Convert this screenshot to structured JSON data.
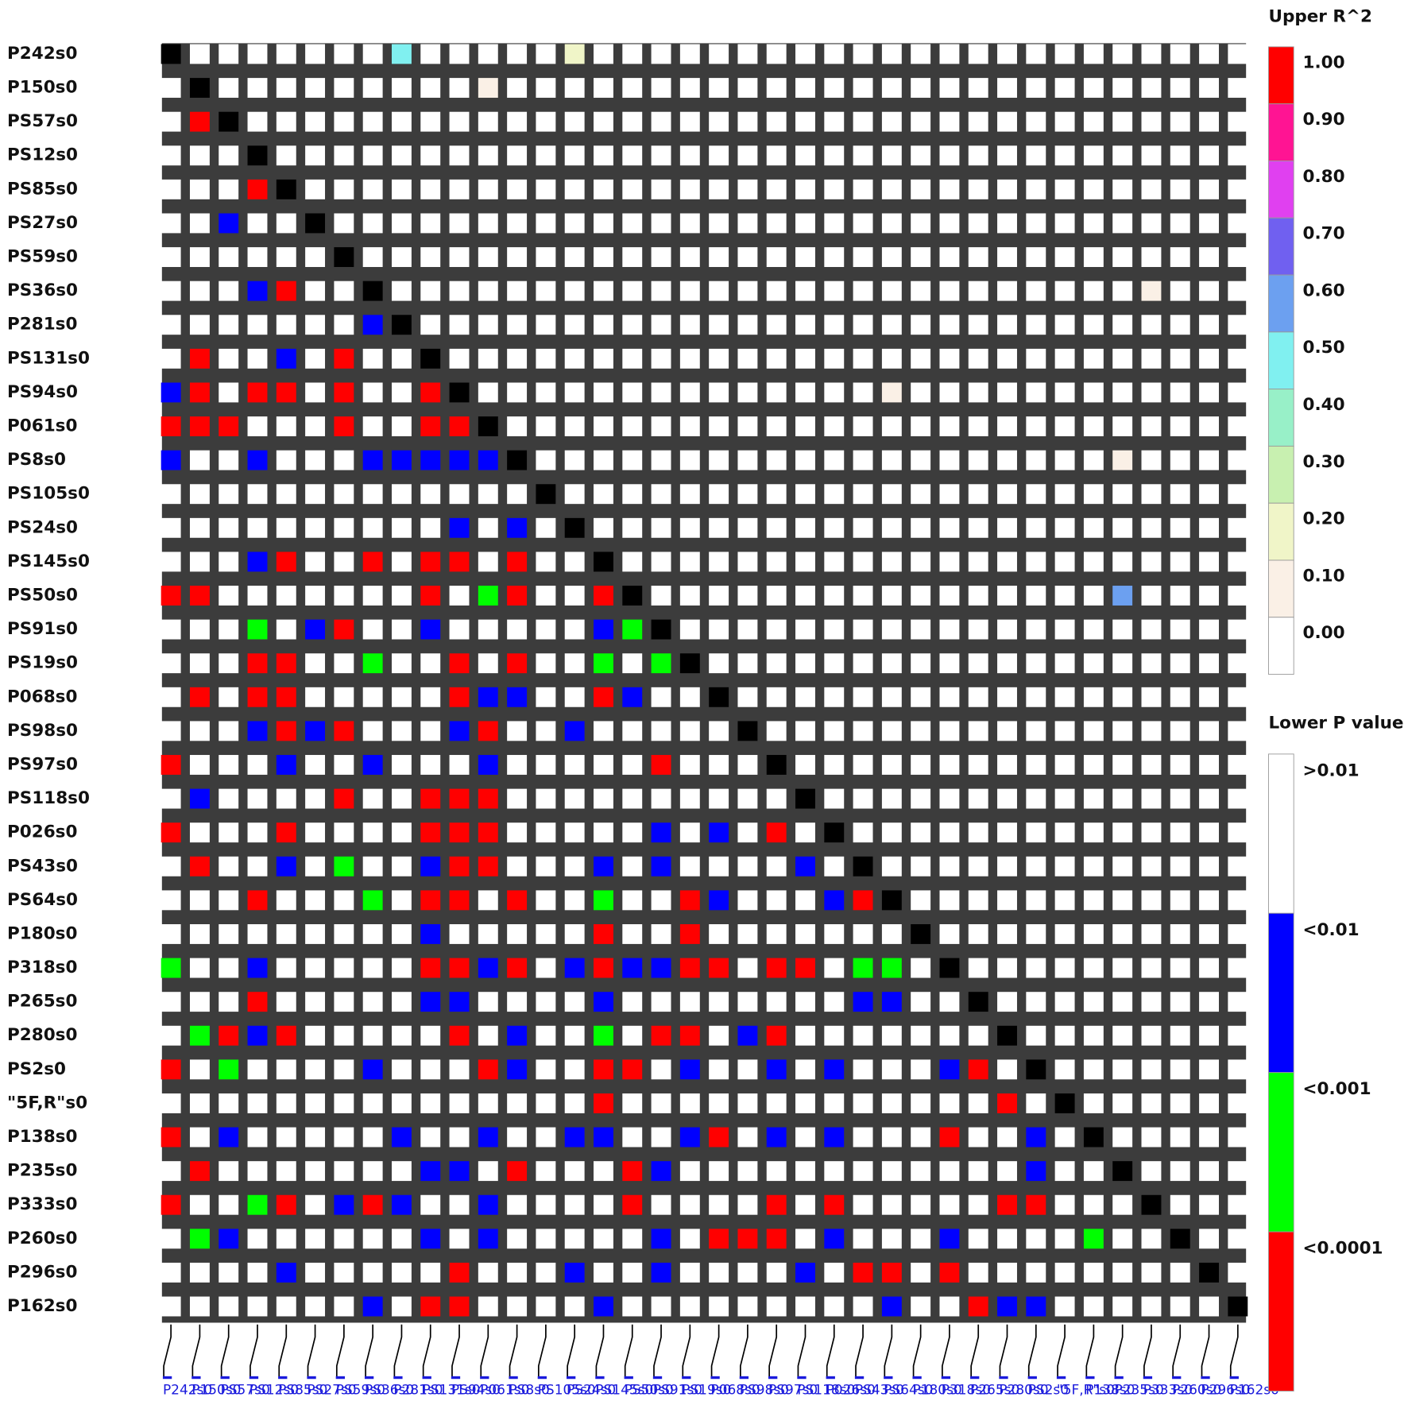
{
  "chart_data": {
    "type": "ld_heatmap",
    "categories": [
      "P242s0",
      "P150s0",
      "PS57s0",
      "PS12s0",
      "PS85s0",
      "PS27s0",
      "PS59s0",
      "PS36s0",
      "P281s0",
      "PS131s0",
      "PS94s0",
      "P061s0",
      "PS8s0",
      "PS105s0",
      "PS24s0",
      "PS145s0",
      "PS50s0",
      "PS91s0",
      "PS19s0",
      "P068s0",
      "PS98s0",
      "PS97s0",
      "PS118s0",
      "P026s0",
      "PS43s0",
      "PS64s0",
      "P180s0",
      "P318s0",
      "P265s0",
      "P280s0",
      "PS2s0",
      "\"5F,R\"s0",
      "P138s0",
      "P235s0",
      "P333s0",
      "P260s0",
      "P296s0",
      "P162s0"
    ],
    "r2_legend": {
      "title": "Upper R^2",
      "ticks": [
        {
          "value": 1,
          "label": "1.00"
        },
        {
          "value": 0.9,
          "label": "0.90"
        },
        {
          "value": 0.8,
          "label": "0.80"
        },
        {
          "value": 0.7,
          "label": "0.70"
        },
        {
          "value": 0.6,
          "label": "0.60"
        },
        {
          "value": 0.5,
          "label": "0.50"
        },
        {
          "value": 0.4,
          "label": "0.40"
        },
        {
          "value": 0.3,
          "label": "0.30"
        },
        {
          "value": 0.2,
          "label": "0.20"
        },
        {
          "value": 0.1,
          "label": "0.10"
        },
        {
          "value": 0,
          "label": "0.00"
        }
      ],
      "colors": [
        "#ff0000",
        "#ff1493",
        "#e040f0",
        "#7060f0",
        "#6ca0f0",
        "#80f0f0",
        "#98f0c8",
        "#c8f0b0",
        "#f0f5c8",
        "#faf0e6",
        "#ffffff"
      ]
    },
    "p_legend": {
      "title": "Lower P value",
      "labels": [
        ">0.01",
        "<0.01",
        "<0.001",
        "<0.0001"
      ],
      "colors": [
        "#ffffff",
        "#0000ff",
        "#00ff00",
        "#ff0000"
      ]
    },
    "diagonal_color": "#000000",
    "r2": [
      [
        0,
        0,
        0,
        0,
        0,
        0,
        0,
        0.5,
        0,
        0,
        0,
        0,
        0,
        0.2,
        0,
        0,
        0,
        0,
        0,
        0,
        0,
        0,
        0,
        0,
        0,
        0,
        0,
        0,
        0,
        0,
        0,
        0,
        0,
        0,
        0,
        0,
        0
      ],
      [
        0,
        0,
        0,
        0,
        0,
        0,
        0,
        0,
        0,
        0.1,
        0,
        0,
        0,
        0,
        0,
        0,
        0,
        0,
        0,
        0,
        0,
        0,
        0,
        0,
        0,
        0,
        0,
        0,
        0,
        0,
        0,
        0,
        0,
        0,
        0,
        0
      ],
      [
        0,
        0,
        0,
        0,
        0,
        0,
        0,
        0,
        0,
        0,
        0,
        0,
        0,
        0,
        0,
        0,
        0,
        0,
        0,
        0,
        0,
        0,
        0,
        0,
        0,
        0,
        0,
        0,
        0,
        0,
        0,
        0,
        0,
        0,
        0
      ],
      [
        0,
        0,
        0,
        0,
        0,
        0,
        0,
        0,
        0,
        0,
        0,
        0,
        0,
        0,
        0,
        0,
        0,
        0,
        0,
        0,
        0,
        0,
        0,
        0,
        0,
        0,
        0,
        0,
        0,
        0,
        0,
        0,
        0,
        0
      ],
      [
        0,
        0,
        0,
        0,
        0,
        0,
        0,
        0,
        0,
        0,
        0,
        0,
        0,
        0,
        0,
        0,
        0,
        0,
        0,
        0,
        0,
        0,
        0,
        0,
        0,
        0,
        0,
        0,
        0,
        0,
        0,
        0,
        0
      ],
      [
        0,
        0,
        0,
        0,
        0,
        0,
        0,
        0,
        0,
        0,
        0,
        0,
        0,
        0,
        0,
        0,
        0,
        0,
        0,
        0,
        0,
        0,
        0,
        0,
        0,
        0,
        0,
        0,
        0,
        0,
        0,
        0
      ],
      [
        0,
        0,
        0,
        0,
        0,
        0,
        0,
        0,
        0,
        0,
        0,
        0,
        0,
        0,
        0,
        0,
        0,
        0,
        0,
        0,
        0,
        0,
        0,
        0,
        0,
        0,
        0,
        0,
        0,
        0,
        0
      ],
      [
        0,
        0,
        0,
        0,
        0,
        0,
        0,
        0,
        0,
        0,
        0,
        0,
        0,
        0,
        0,
        0,
        0,
        0,
        0,
        0,
        0,
        0,
        0,
        0,
        0,
        0,
        0.1,
        0,
        0,
        0
      ],
      [
        0,
        0,
        0,
        0,
        0,
        0,
        0,
        0,
        0,
        0,
        0,
        0,
        0,
        0,
        0,
        0,
        0,
        0,
        0,
        0,
        0,
        0,
        0,
        0,
        0,
        0,
        0,
        0,
        0
      ],
      [
        0,
        0,
        0,
        0,
        0,
        0,
        0,
        0,
        0,
        0,
        0,
        0,
        0,
        0,
        0,
        0,
        0,
        0,
        0,
        0,
        0,
        0,
        0,
        0,
        0,
        0,
        0,
        0
      ],
      [
        0,
        0,
        0,
        0,
        0,
        0,
        0,
        0,
        0,
        0,
        0,
        0,
        0,
        0,
        0.1,
        0,
        0,
        0,
        0,
        0,
        0,
        0,
        0,
        0,
        0,
        0,
        0
      ],
      [
        0,
        0,
        0,
        0,
        0,
        0,
        0,
        0,
        0,
        0,
        0,
        0,
        0,
        0,
        0,
        0,
        0,
        0,
        0,
        0,
        0,
        0,
        0,
        0,
        0,
        0
      ],
      [
        0,
        0,
        0,
        0,
        0,
        0,
        0,
        0,
        0,
        0,
        0,
        0,
        0,
        0,
        0,
        0,
        0,
        0,
        0,
        0,
        0.1,
        0,
        0,
        0,
        0
      ],
      [
        0,
        0,
        0,
        0,
        0,
        0,
        0,
        0,
        0,
        0,
        0,
        0,
        0,
        0,
        0,
        0,
        0,
        0,
        0,
        0,
        0,
        0,
        0,
        0
      ],
      [
        0,
        0,
        0,
        0,
        0,
        0,
        0,
        0,
        0,
        0,
        0,
        0,
        0,
        0,
        0,
        0,
        0,
        0,
        0,
        0,
        0,
        0,
        0
      ],
      [
        0,
        0,
        0,
        0,
        0,
        0,
        0,
        0,
        0,
        0,
        0,
        0,
        0,
        0,
        0,
        0,
        0,
        0,
        0,
        0,
        0,
        0
      ],
      [
        0,
        0,
        0,
        0,
        0,
        0,
        0,
        0,
        0,
        0,
        0,
        0,
        0,
        0,
        0,
        0,
        0.6,
        0,
        0,
        0,
        0
      ],
      [
        0,
        0,
        0,
        0,
        0,
        0,
        0,
        0,
        0,
        0,
        0,
        0,
        0,
        0,
        0,
        0,
        0,
        0,
        0,
        0
      ],
      [
        0,
        0,
        0,
        0,
        0,
        0,
        0,
        0,
        0,
        0,
        0,
        0,
        0,
        0,
        0,
        0,
        0,
        0,
        0
      ],
      [
        0,
        0,
        0,
        0,
        0,
        0,
        0,
        0,
        0,
        0,
        0,
        0,
        0,
        0,
        0,
        0,
        0,
        0
      ],
      [
        0,
        0,
        0,
        0,
        0,
        0,
        0,
        0,
        0,
        0,
        0,
        0,
        0,
        0,
        0,
        0,
        0
      ],
      [
        0,
        0,
        0,
        0,
        0,
        0,
        0,
        0,
        0,
        0,
        0,
        0,
        0,
        0,
        0,
        0
      ],
      [
        0,
        0,
        0,
        0,
        0,
        0,
        0,
        0,
        0,
        0,
        0,
        0,
        0,
        0,
        0
      ],
      [
        0,
        0,
        0,
        0,
        0,
        0,
        0,
        0,
        0,
        0,
        0,
        0,
        0,
        0
      ],
      [
        0,
        0,
        0,
        0,
        0,
        0,
        0,
        0,
        0,
        0,
        0,
        0,
        0
      ],
      [
        0,
        0,
        0,
        0,
        0,
        0,
        0,
        0,
        0,
        0,
        0,
        0
      ],
      [
        0,
        0,
        0,
        0,
        0,
        0,
        0,
        0,
        0,
        0,
        0
      ],
      [
        0,
        0,
        0,
        0,
        0,
        0,
        0,
        0,
        0,
        0
      ],
      [
        0,
        0,
        0,
        0,
        0,
        0,
        0,
        0,
        0
      ],
      [
        0,
        0,
        0,
        0,
        0,
        0,
        0,
        0
      ],
      [
        0,
        0,
        0,
        0,
        0,
        0,
        0
      ],
      [
        0,
        0,
        0,
        0,
        0,
        0
      ],
      [
        0,
        0,
        0,
        0,
        0
      ],
      [
        0,
        0,
        0,
        0
      ],
      [
        0,
        0,
        0
      ],
      [
        0,
        0
      ],
      [
        0
      ],
      []
    ],
    "p_class": [
      [],
      [
        0
      ],
      [
        0,
        3
      ],
      [
        0,
        0,
        0
      ],
      [
        0,
        0,
        0,
        3
      ],
      [
        0,
        0,
        1,
        0,
        0
      ],
      [
        0,
        0,
        0,
        0,
        0,
        0
      ],
      [
        0,
        0,
        0,
        1,
        3,
        0,
        0
      ],
      [
        0,
        0,
        0,
        0,
        0,
        0,
        0,
        1
      ],
      [
        0,
        3,
        0,
        0,
        1,
        0,
        3,
        0,
        0
      ],
      [
        1,
        3,
        0,
        3,
        3,
        0,
        3,
        0,
        0,
        3
      ],
      [
        3,
        3,
        3,
        0,
        0,
        0,
        3,
        0,
        0,
        3,
        3
      ],
      [
        1,
        0,
        0,
        1,
        0,
        0,
        0,
        1,
        1,
        1,
        1,
        1
      ],
      [
        0,
        0,
        0,
        0,
        0,
        0,
        0,
        0,
        0,
        0,
        0,
        0,
        0
      ],
      [
        0,
        0,
        0,
        0,
        0,
        0,
        0,
        0,
        0,
        0,
        1,
        0,
        1,
        0
      ],
      [
        0,
        0,
        0,
        1,
        3,
        0,
        0,
        3,
        0,
        3,
        3,
        0,
        3,
        0,
        0
      ],
      [
        3,
        3,
        0,
        0,
        0,
        0,
        0,
        0,
        0,
        3,
        0,
        2,
        3,
        0,
        0,
        3
      ],
      [
        0,
        0,
        0,
        2,
        0,
        1,
        3,
        0,
        0,
        1,
        0,
        0,
        0,
        0,
        0,
        1,
        2
      ],
      [
        0,
        0,
        0,
        3,
        3,
        0,
        0,
        2,
        0,
        0,
        3,
        0,
        3,
        0,
        0,
        2,
        0,
        2
      ],
      [
        0,
        3,
        0,
        3,
        3,
        0,
        0,
        0,
        0,
        0,
        3,
        1,
        1,
        0,
        0,
        3,
        1,
        0,
        0
      ],
      [
        0,
        0,
        0,
        1,
        3,
        1,
        3,
        0,
        0,
        0,
        1,
        3,
        0,
        0,
        1,
        0,
        0,
        0,
        0,
        0
      ],
      [
        3,
        0,
        0,
        0,
        1,
        0,
        0,
        1,
        0,
        0,
        0,
        1,
        0,
        0,
        0,
        0,
        0,
        3,
        0,
        0,
        0
      ],
      [
        0,
        1,
        0,
        0,
        0,
        0,
        3,
        0,
        0,
        3,
        3,
        3,
        0,
        0,
        0,
        0,
        0,
        0,
        0,
        0,
        0,
        0
      ],
      [
        3,
        0,
        0,
        0,
        3,
        0,
        0,
        0,
        0,
        3,
        3,
        3,
        0,
        0,
        0,
        0,
        0,
        1,
        0,
        1,
        0,
        3,
        0
      ],
      [
        0,
        3,
        0,
        0,
        1,
        0,
        2,
        0,
        0,
        1,
        3,
        3,
        0,
        0,
        0,
        1,
        0,
        1,
        0,
        0,
        0,
        0,
        1,
        0
      ],
      [
        0,
        0,
        0,
        3,
        0,
        0,
        0,
        2,
        0,
        3,
        3,
        0,
        3,
        0,
        0,
        2,
        0,
        0,
        3,
        1,
        0,
        0,
        0,
        1,
        3
      ],
      [
        0,
        0,
        0,
        0,
        0,
        0,
        0,
        0,
        0,
        1,
        0,
        0,
        0,
        0,
        0,
        3,
        0,
        0,
        3,
        0,
        0,
        0,
        0,
        0,
        0,
        0
      ],
      [
        2,
        0,
        0,
        1,
        0,
        0,
        0,
        0,
        0,
        3,
        3,
        1,
        3,
        0,
        1,
        3,
        1,
        1,
        3,
        3,
        0,
        3,
        3,
        0,
        2,
        2,
        0
      ],
      [
        0,
        0,
        0,
        3,
        0,
        0,
        0,
        0,
        0,
        1,
        1,
        0,
        0,
        0,
        0,
        1,
        0,
        0,
        0,
        0,
        0,
        0,
        0,
        0,
        1,
        1,
        0,
        0
      ],
      [
        0,
        2,
        3,
        1,
        3,
        0,
        0,
        0,
        0,
        0,
        3,
        0,
        1,
        0,
        0,
        2,
        0,
        3,
        3,
        0,
        1,
        3,
        0,
        0,
        0,
        0,
        0,
        0,
        0
      ],
      [
        3,
        0,
        2,
        0,
        0,
        0,
        0,
        1,
        0,
        0,
        0,
        3,
        1,
        0,
        0,
        3,
        3,
        0,
        1,
        0,
        0,
        1,
        0,
        1,
        0,
        0,
        0,
        1,
        3,
        0
      ],
      [
        0,
        0,
        0,
        0,
        0,
        0,
        0,
        0,
        0,
        0,
        0,
        0,
        0,
        0,
        0,
        3,
        0,
        0,
        0,
        0,
        0,
        0,
        0,
        0,
        0,
        0,
        0,
        0,
        0,
        3,
        0
      ],
      [
        3,
        0,
        1,
        0,
        0,
        0,
        0,
        0,
        1,
        0,
        0,
        1,
        0,
        0,
        1,
        1,
        0,
        0,
        1,
        3,
        0,
        1,
        0,
        1,
        0,
        0,
        0,
        3,
        0,
        0,
        1,
        0
      ],
      [
        0,
        3,
        0,
        0,
        0,
        0,
        0,
        0,
        0,
        1,
        1,
        0,
        3,
        0,
        0,
        0,
        3,
        1,
        0,
        0,
        0,
        0,
        0,
        0,
        0,
        0,
        0,
        0,
        0,
        0,
        1,
        0,
        0
      ],
      [
        3,
        0,
        0,
        2,
        3,
        0,
        1,
        3,
        1,
        0,
        0,
        1,
        0,
        0,
        0,
        0,
        3,
        0,
        0,
        0,
        0,
        3,
        0,
        3,
        0,
        0,
        0,
        0,
        0,
        3,
        3,
        0,
        0,
        0
      ],
      [
        0,
        2,
        1,
        0,
        0,
        0,
        0,
        0,
        0,
        1,
        0,
        1,
        0,
        0,
        0,
        0,
        0,
        1,
        0,
        3,
        3,
        3,
        0,
        1,
        0,
        0,
        0,
        1,
        0,
        0,
        0,
        0,
        2,
        0,
        0
      ],
      [
        0,
        0,
        0,
        0,
        1,
        0,
        0,
        0,
        0,
        0,
        3,
        0,
        0,
        0,
        1,
        0,
        0,
        1,
        0,
        0,
        0,
        0,
        1,
        0,
        3,
        3,
        0,
        3,
        0,
        0,
        0,
        0,
        0,
        0,
        0,
        0
      ],
      [
        0,
        0,
        0,
        0,
        0,
        0,
        0,
        1,
        0,
        3,
        3,
        0,
        0,
        0,
        0,
        1,
        0,
        0,
        0,
        0,
        0,
        0,
        0,
        0,
        0,
        1,
        0,
        0,
        3,
        1,
        1,
        0,
        0,
        0,
        0,
        0,
        0
      ]
    ]
  }
}
